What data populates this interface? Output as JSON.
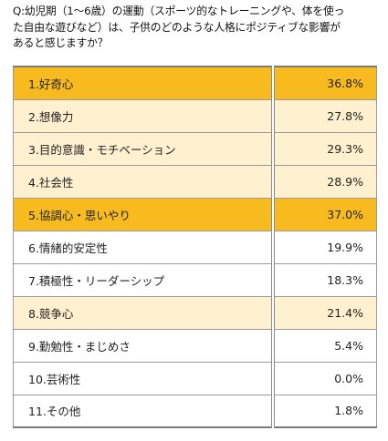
{
  "question": {
    "line1": "Q:幼児期（1～6歳）の運動（スポーツ的なトレーニングや、体を使っ",
    "line2": "た自由な遊びなど）は、子供のどのような人格にポジティブな影響が",
    "line3": "あると感じますか？"
  },
  "colors": {
    "highlight_top": "#f7bb20",
    "highlight_mid": "#fff1cf",
    "plain": "#ffffff",
    "border": "#9a9a9a"
  },
  "chart_data": {
    "type": "table",
    "title": "",
    "columns": [
      "",
      ""
    ],
    "rows": [
      {
        "label": "1.好奇心",
        "value": 36.8,
        "display": "36.8%",
        "tier": "top"
      },
      {
        "label": "2.想像力",
        "value": 27.8,
        "display": "27.8%",
        "tier": "mid"
      },
      {
        "label": "3.目的意識・モチベーション",
        "value": 29.3,
        "display": "29.3%",
        "tier": "mid"
      },
      {
        "label": "4.社会性",
        "value": 28.9,
        "display": "28.9%",
        "tier": "mid"
      },
      {
        "label": "5.協調心・思いやり",
        "value": 37.0,
        "display": "37.0%",
        "tier": "top"
      },
      {
        "label": "6.情緒的安定性",
        "value": 19.9,
        "display": "19.9%",
        "tier": "low"
      },
      {
        "label": "7.積極性・リーダーシップ",
        "value": 18.3,
        "display": "18.3%",
        "tier": "low"
      },
      {
        "label": "8.競争心",
        "value": 21.4,
        "display": "21.4%",
        "tier": "mid"
      },
      {
        "label": "9.勤勉性・まじめさ",
        "value": 5.4,
        "display": "5.4%",
        "tier": "low"
      },
      {
        "label": "10.芸術性",
        "value": 0.0,
        "display": "0.0%",
        "tier": "low"
      },
      {
        "label": "11.その他",
        "value": 1.8,
        "display": "1.8%",
        "tier": "low"
      }
    ]
  }
}
